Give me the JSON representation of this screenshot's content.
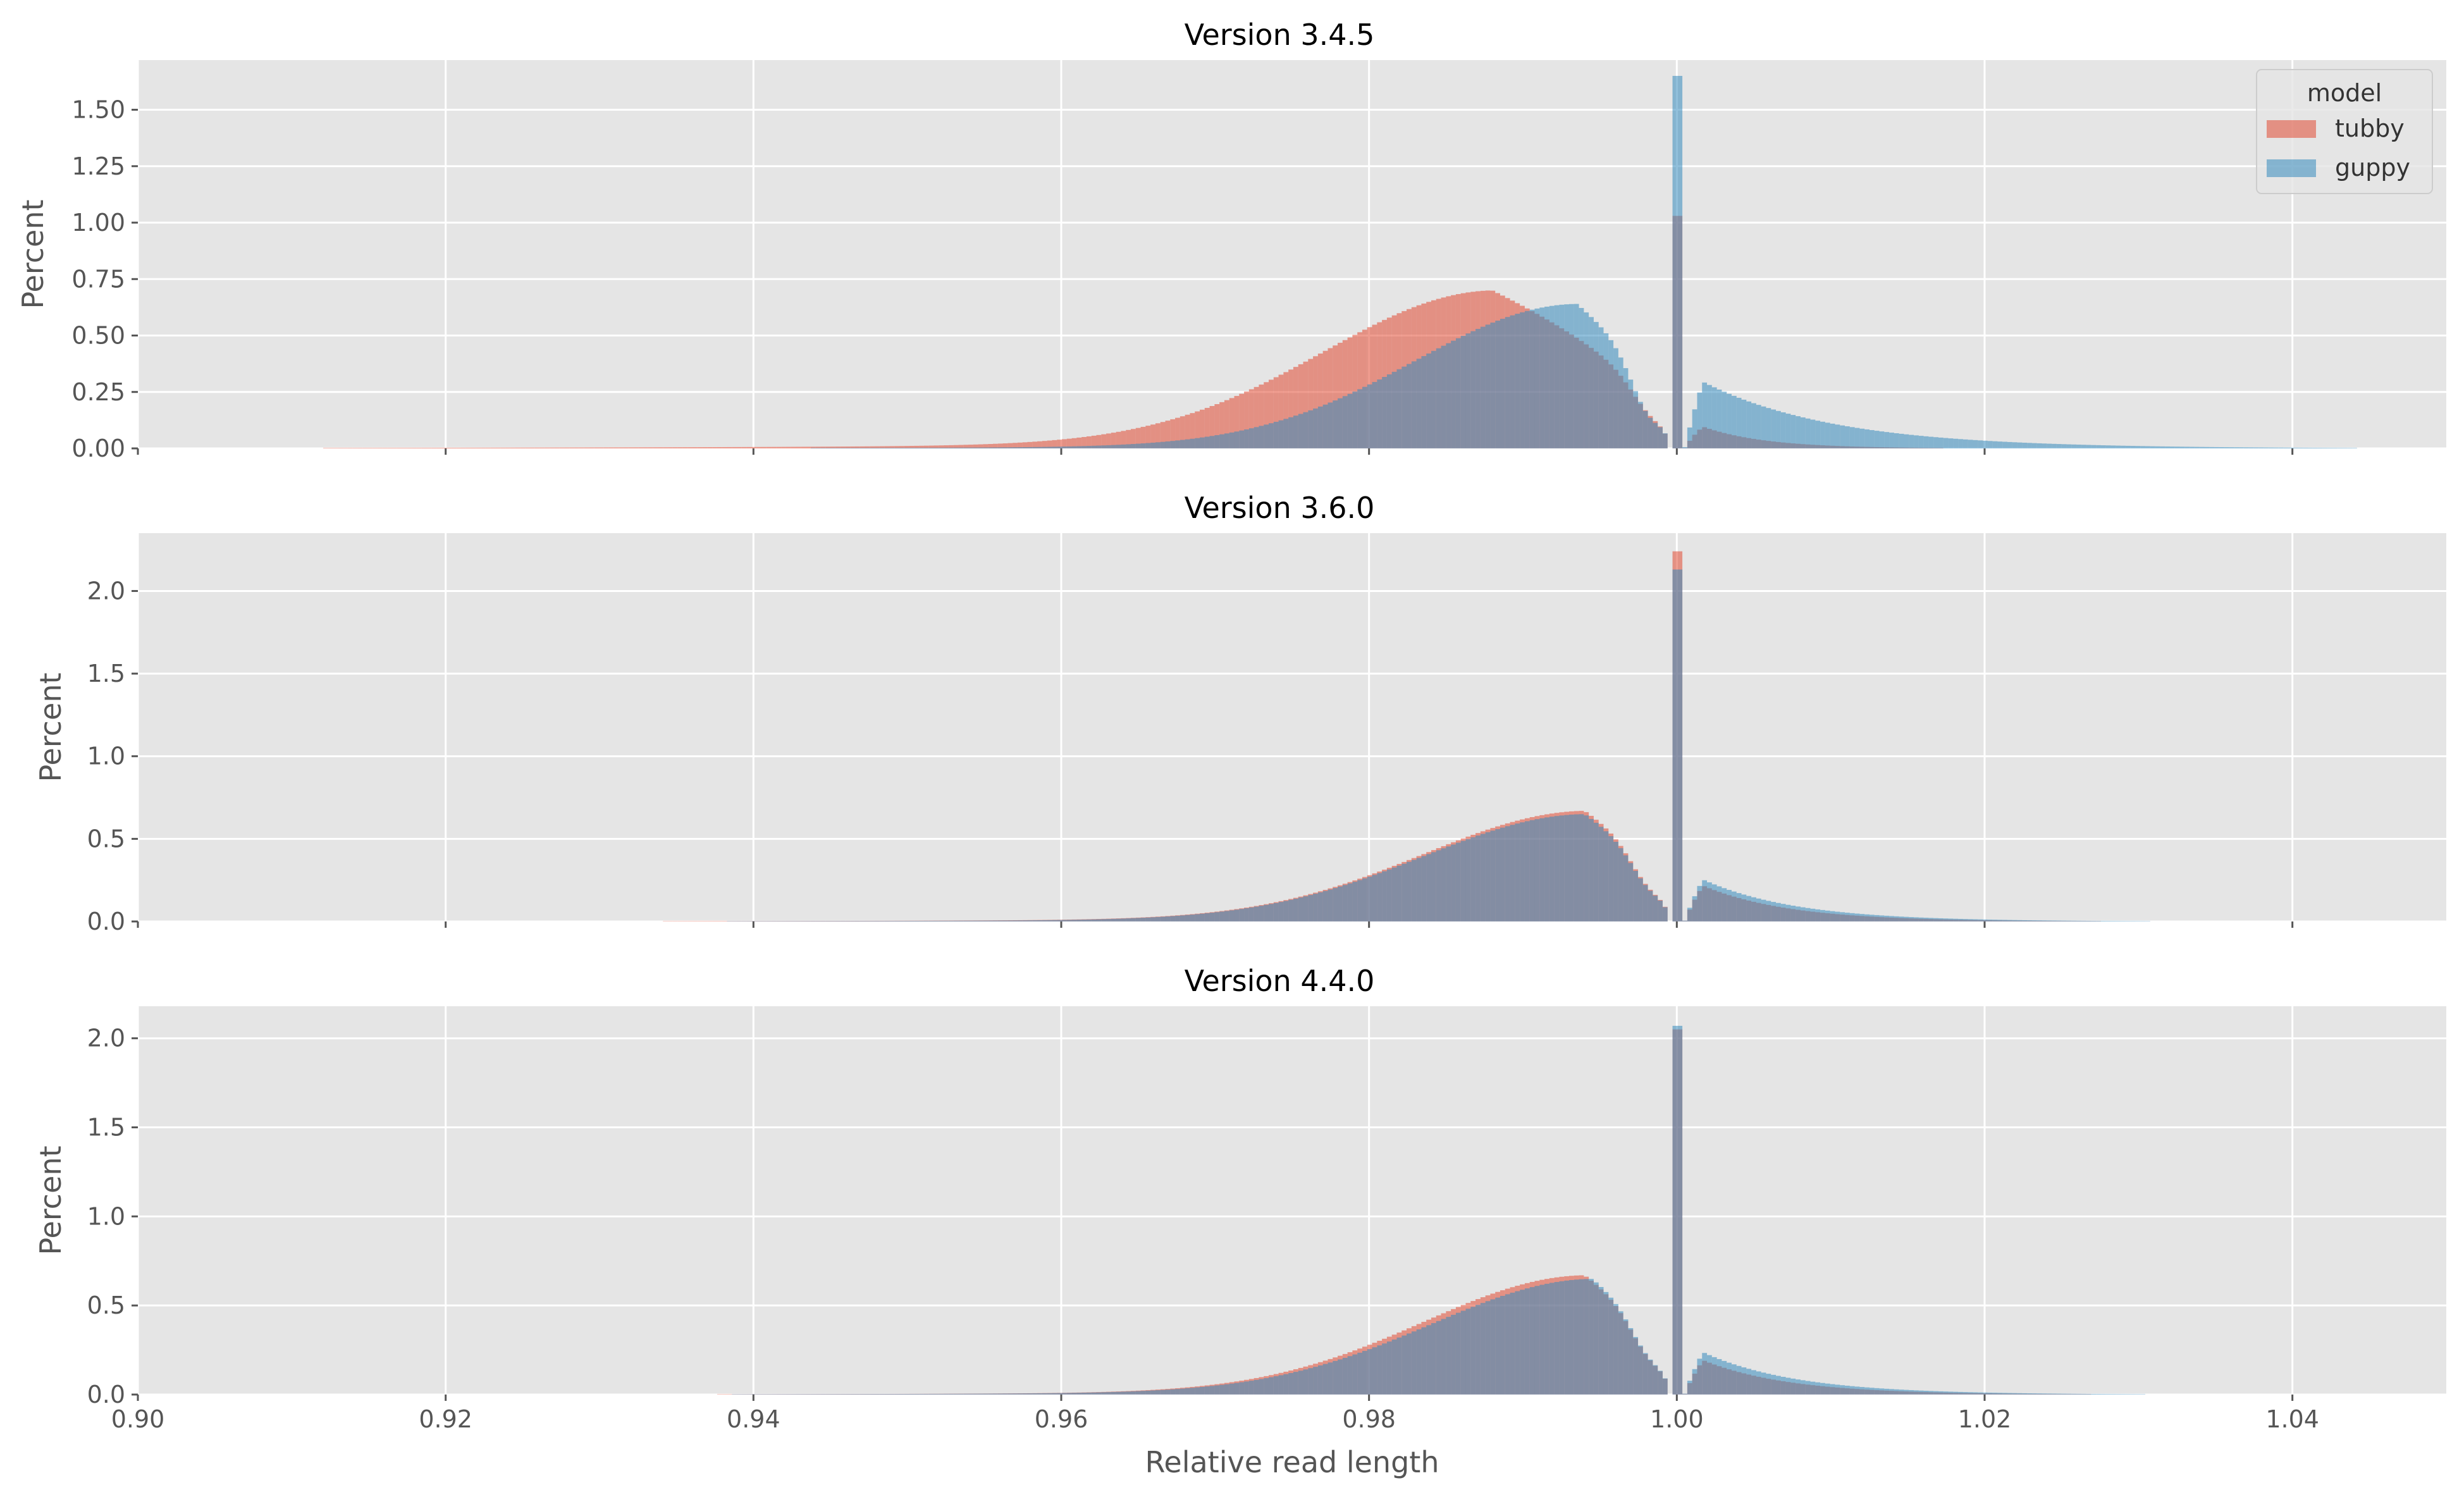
{
  "colors": {
    "tubby": "#E24A33",
    "guppy": "#348ABD",
    "plot_bg": "#E5E5E5",
    "grid": "#FFFFFF",
    "tick_text": "#555555"
  },
  "chart_data": {
    "type": "histogram",
    "xlabel": "Relative read length",
    "ylabel": "Percent",
    "xlim": [
      0.9,
      1.05
    ],
    "x_ticks": [
      0.9,
      0.92,
      0.94,
      0.96,
      0.98,
      1.0,
      1.02,
      1.04
    ],
    "x_tick_labels": [
      "0.90",
      "0.92",
      "0.94",
      "0.96",
      "0.98",
      "1.00",
      "1.02",
      "1.04"
    ],
    "grid": true,
    "shared_x": true,
    "legend": {
      "title": "model",
      "placement": "top-right",
      "entries": [
        "tubby",
        "guppy"
      ]
    },
    "panels": [
      {
        "title": "Version 3.4.5",
        "ylim": [
          0,
          1.72
        ],
        "y_ticks": [
          0,
          0.25,
          0.5,
          0.75,
          1.0,
          1.25,
          1.5
        ],
        "y_tick_labels": [
          "0.00",
          "0.25",
          "0.50",
          "0.75",
          "1.00",
          "1.25",
          "1.50"
        ],
        "series": [
          {
            "name": "tubby",
            "mode": 0.988,
            "peak": 0.7,
            "left_width": 0.011,
            "tail_weight": 0.06,
            "tail_scale": 0.025,
            "dip": 0.3,
            "right_peak": 0.13,
            "right_scale": 0.004,
            "spike": 1.03
          },
          {
            "name": "guppy",
            "mode": 0.9935,
            "peak": 0.64,
            "left_width": 0.0105,
            "tail_weight": 0.03,
            "tail_scale": 0.022,
            "dip": 0.5,
            "right_peak": 0.34,
            "right_scale": 0.0085,
            "spike": 1.65
          }
        ]
      },
      {
        "title": "Version 3.6.0",
        "ylim": [
          0,
          2.35
        ],
        "y_ticks": [
          0,
          0.5,
          1.0,
          1.5,
          2.0
        ],
        "y_tick_labels": [
          "0.0",
          "0.5",
          "1.0",
          "1.5",
          "2.0"
        ],
        "series": [
          {
            "name": "tubby",
            "mode": 0.994,
            "peak": 0.67,
            "left_width": 0.0105,
            "tail_weight": 0.06,
            "tail_scale": 0.02,
            "dip": 0.35,
            "right_peak": 0.27,
            "right_scale": 0.0055,
            "spike": 2.24
          },
          {
            "name": "guppy",
            "mode": 0.994,
            "peak": 0.65,
            "left_width": 0.0105,
            "tail_weight": 0.05,
            "tail_scale": 0.02,
            "dip": 0.35,
            "right_peak": 0.31,
            "right_scale": 0.006,
            "spike": 2.13
          }
        ]
      },
      {
        "title": "Version 4.4.0",
        "ylim": [
          0,
          2.18
        ],
        "y_ticks": [
          0,
          0.5,
          1.0,
          1.5,
          2.0
        ],
        "y_tick_labels": [
          "0.0",
          "0.5",
          "1.0",
          "1.5",
          "2.0"
        ],
        "series": [
          {
            "name": "tubby",
            "mode": 0.994,
            "peak": 0.67,
            "left_width": 0.0105,
            "tail_weight": 0.05,
            "tail_scale": 0.02,
            "dip": 0.35,
            "right_peak": 0.24,
            "right_scale": 0.0055,
            "spike": 2.05
          },
          {
            "name": "guppy",
            "mode": 0.9945,
            "peak": 0.65,
            "left_width": 0.0105,
            "tail_weight": 0.05,
            "tail_scale": 0.02,
            "dip": 0.35,
            "right_peak": 0.29,
            "right_scale": 0.006,
            "spike": 2.07
          }
        ]
      }
    ]
  }
}
